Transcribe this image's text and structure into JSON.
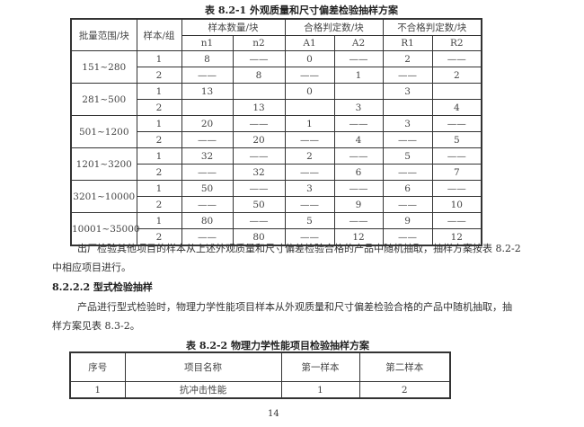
{
  "table1": {
    "caption": "表 8.2-1   外观质量和尺寸偏差检验抽样方案",
    "headers": {
      "batch": "批量范围/块",
      "sample": "样本/组",
      "count": "样本数量/块",
      "accept": "合格判定数/块",
      "reject": "不合格判定数/块",
      "sub": [
        "n1",
        "n2",
        "A1",
        "A2",
        "R1",
        "R2"
      ]
    },
    "groups": [
      {
        "range": "151~280",
        "rows": [
          [
            "1",
            "8",
            "——",
            "0",
            "——",
            "2",
            "——"
          ],
          [
            "2",
            "——",
            "8",
            "——",
            "1",
            "——",
            "2"
          ]
        ]
      },
      {
        "range": "281~500",
        "rows": [
          [
            "1",
            "13",
            "",
            "0",
            "",
            "3",
            ""
          ],
          [
            "2",
            "",
            "13",
            "",
            "3",
            "",
            "4"
          ]
        ]
      },
      {
        "range": "501~1200",
        "rows": [
          [
            "1",
            "20",
            "——",
            "1",
            "——",
            "3",
            "——"
          ],
          [
            "2",
            "——",
            "20",
            "——",
            "4",
            "——",
            "5"
          ]
        ]
      },
      {
        "range": "1201~3200",
        "rows": [
          [
            "1",
            "32",
            "——",
            "2",
            "——",
            "5",
            "——"
          ],
          [
            "2",
            "——",
            "32",
            "——",
            "6",
            "——",
            "7"
          ]
        ]
      },
      {
        "range": "3201~10000",
        "rows": [
          [
            "1",
            "50",
            "——",
            "3",
            "——",
            "6",
            "——"
          ],
          [
            "2",
            "——",
            "50",
            "——",
            "9",
            "——",
            "10"
          ]
        ]
      },
      {
        "range": "10001~35000",
        "rows": [
          [
            "1",
            "80",
            "——",
            "5",
            "——",
            "9",
            "——"
          ],
          [
            "2",
            "——",
            "80",
            "——",
            "12",
            "——",
            "12"
          ]
        ]
      }
    ]
  },
  "paragraph1": {
    "line1": "出厂检验其他项目的样本从上述外观质量和尺寸偏差检验合格的产品中随机抽取，抽样方案按表 8.2-2",
    "line2": "中相应项目进行。"
  },
  "section_heading": "8.2.2.2  型式检验抽样",
  "paragraph2": {
    "line1": "产品进行型式检验时，物理力学性能项目样本从外观质量和尺寸偏差检验合格的产品中随机抽取，抽",
    "line2": "样方案见表 8.3-2。"
  },
  "table2": {
    "caption": "表 8.2-2   物理力学性能项目检验抽样方案",
    "headers": [
      "序号",
      "项目名称",
      "第一样本",
      "第二样本"
    ],
    "rows": [
      [
        "1",
        "抗冲击性能",
        "1",
        "2"
      ]
    ]
  },
  "page_number": "14"
}
